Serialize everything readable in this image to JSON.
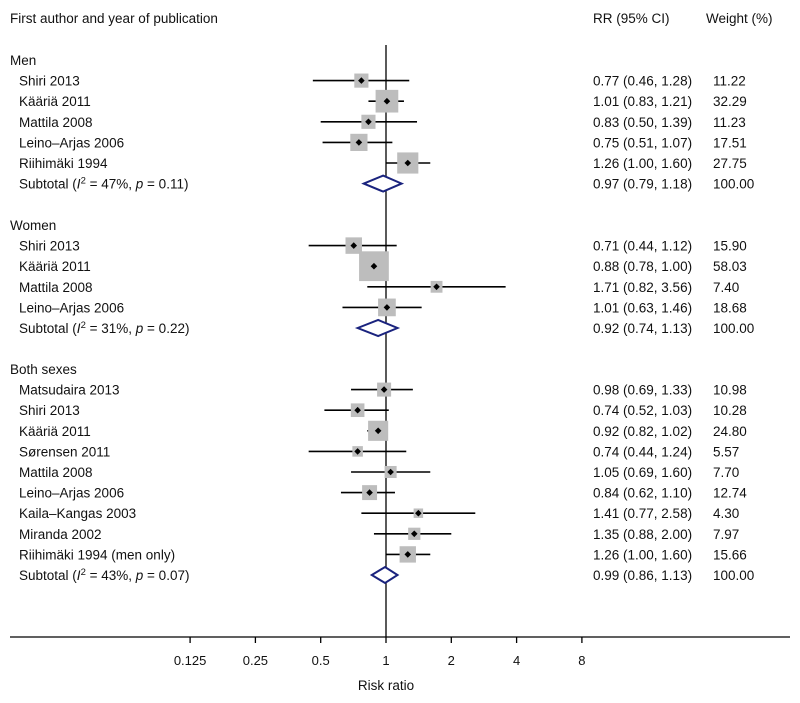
{
  "chart_data": {
    "type": "forest",
    "header": {
      "study": "First author and year of publication",
      "rr": "RR (95% CI)",
      "weight": "Weight (%)"
    },
    "xlabel": "Risk ratio",
    "x_scale": "log2",
    "x_ticks": [
      {
        "value": 0.125,
        "label": "0.125"
      },
      {
        "value": 0.25,
        "label": "0.25"
      },
      {
        "value": 0.5,
        "label": "0.5"
      },
      {
        "value": 1,
        "label": "1"
      },
      {
        "value": 2,
        "label": "2"
      },
      {
        "value": 4,
        "label": "4"
      },
      {
        "value": 8,
        "label": "8"
      }
    ],
    "reference_line": 1,
    "groups": [
      {
        "name": "Men",
        "studies": [
          {
            "label": "Shiri 2013",
            "rr": 0.77,
            "lo": 0.46,
            "hi": 1.28,
            "ci_text": "0.77 (0.46, 1.28)",
            "weight": "11.22"
          },
          {
            "label": "Kääriä 2011",
            "rr": 1.01,
            "lo": 0.83,
            "hi": 1.21,
            "ci_text": "1.01 (0.83, 1.21)",
            "weight": "32.29"
          },
          {
            "label": "Mattila 2008",
            "rr": 0.83,
            "lo": 0.5,
            "hi": 1.39,
            "ci_text": "0.83 (0.50, 1.39)",
            "weight": "11.23"
          },
          {
            "label": "Leino–Arjas 2006",
            "rr": 0.75,
            "lo": 0.51,
            "hi": 1.07,
            "ci_text": "0.75 (0.51, 1.07)",
            "weight": "17.51"
          },
          {
            "label": "Riihimäki 1994",
            "rr": 1.26,
            "lo": 1.0,
            "hi": 1.6,
            "ci_text": "1.26 (1.00, 1.60)",
            "weight": "27.75"
          }
        ],
        "subtotal": {
          "prefix": "Subtotal (",
          "i2_symbol": "I",
          "i2_sup": "2",
          "stats": " = 47%, ",
          "p_symbol": "p",
          "p_rest": " = 0.11)",
          "rr": 0.97,
          "lo": 0.79,
          "hi": 1.18,
          "ci_text": "0.97 (0.79, 1.18)",
          "weight": "100.00"
        }
      },
      {
        "name": "Women",
        "studies": [
          {
            "label": "Shiri 2013",
            "rr": 0.71,
            "lo": 0.44,
            "hi": 1.12,
            "ci_text": "0.71 (0.44, 1.12)",
            "weight": "15.90"
          },
          {
            "label": "Kääriä 2011",
            "rr": 0.88,
            "lo": 0.78,
            "hi": 1.0,
            "ci_text": "0.88 (0.78, 1.00)",
            "weight": "58.03"
          },
          {
            "label": "Mattila 2008",
            "rr": 1.71,
            "lo": 0.82,
            "hi": 3.56,
            "ci_text": "1.71 (0.82, 3.56)",
            "weight": "7.40"
          },
          {
            "label": "Leino–Arjas 2006",
            "rr": 1.01,
            "lo": 0.63,
            "hi": 1.46,
            "ci_text": "1.01 (0.63, 1.46)",
            "weight": "18.68"
          }
        ],
        "subtotal": {
          "prefix": "Subtotal (",
          "i2_symbol": "I",
          "i2_sup": "2",
          "stats": " = 31%, ",
          "p_symbol": "p",
          "p_rest": " = 0.22)",
          "rr": 0.92,
          "lo": 0.74,
          "hi": 1.13,
          "ci_text": "0.92 (0.74, 1.13)",
          "weight": "100.00"
        }
      },
      {
        "name": "Both sexes",
        "studies": [
          {
            "label": "Matsudaira 2013",
            "rr": 0.98,
            "lo": 0.69,
            "hi": 1.33,
            "ci_text": "0.98 (0.69, 1.33)",
            "weight": "10.98"
          },
          {
            "label": "Shiri 2013",
            "rr": 0.74,
            "lo": 0.52,
            "hi": 1.03,
            "ci_text": "0.74 (0.52, 1.03)",
            "weight": "10.28"
          },
          {
            "label": "Kääriä 2011",
            "rr": 0.92,
            "lo": 0.82,
            "hi": 1.02,
            "ci_text": "0.92 (0.82, 1.02)",
            "weight": "24.80"
          },
          {
            "label": "Sørensen 2011",
            "rr": 0.74,
            "lo": 0.44,
            "hi": 1.24,
            "ci_text": "0.74 (0.44, 1.24)",
            "weight": "5.57"
          },
          {
            "label": "Mattila 2008",
            "rr": 1.05,
            "lo": 0.69,
            "hi": 1.6,
            "ci_text": "1.05 (0.69, 1.60)",
            "weight": "7.70"
          },
          {
            "label": "Leino–Arjas 2006",
            "rr": 0.84,
            "lo": 0.62,
            "hi": 1.1,
            "ci_text": "0.84 (0.62, 1.10)",
            "weight": "12.74"
          },
          {
            "label": "Kaila–Kangas 2003",
            "rr": 1.41,
            "lo": 0.77,
            "hi": 2.58,
            "ci_text": "1.41 (0.77, 2.58)",
            "weight": "4.30"
          },
          {
            "label": "Miranda 2002",
            "rr": 1.35,
            "lo": 0.88,
            "hi": 2.0,
            "ci_text": "1.35 (0.88, 2.00)",
            "weight": "7.97"
          },
          {
            "label": "Riihimäki 1994 (men only)",
            "rr": 1.26,
            "lo": 1.0,
            "hi": 1.6,
            "ci_text": "1.26 (1.00, 1.60)",
            "weight": "15.66"
          }
        ],
        "subtotal": {
          "prefix": "Subtotal (",
          "i2_symbol": "I",
          "i2_sup": "2",
          "stats": " = 43%, ",
          "p_symbol": "p",
          "p_rest": " = 0.07)",
          "rr": 0.99,
          "lo": 0.86,
          "hi": 1.13,
          "ci_text": "0.99 (0.86, 1.13)",
          "weight": "100.00"
        }
      }
    ],
    "colors": {
      "box": "#bdbdbd",
      "point": "#000000",
      "ci_line": "#000000",
      "diamond": "#1a237e",
      "axis": "#000000"
    }
  }
}
